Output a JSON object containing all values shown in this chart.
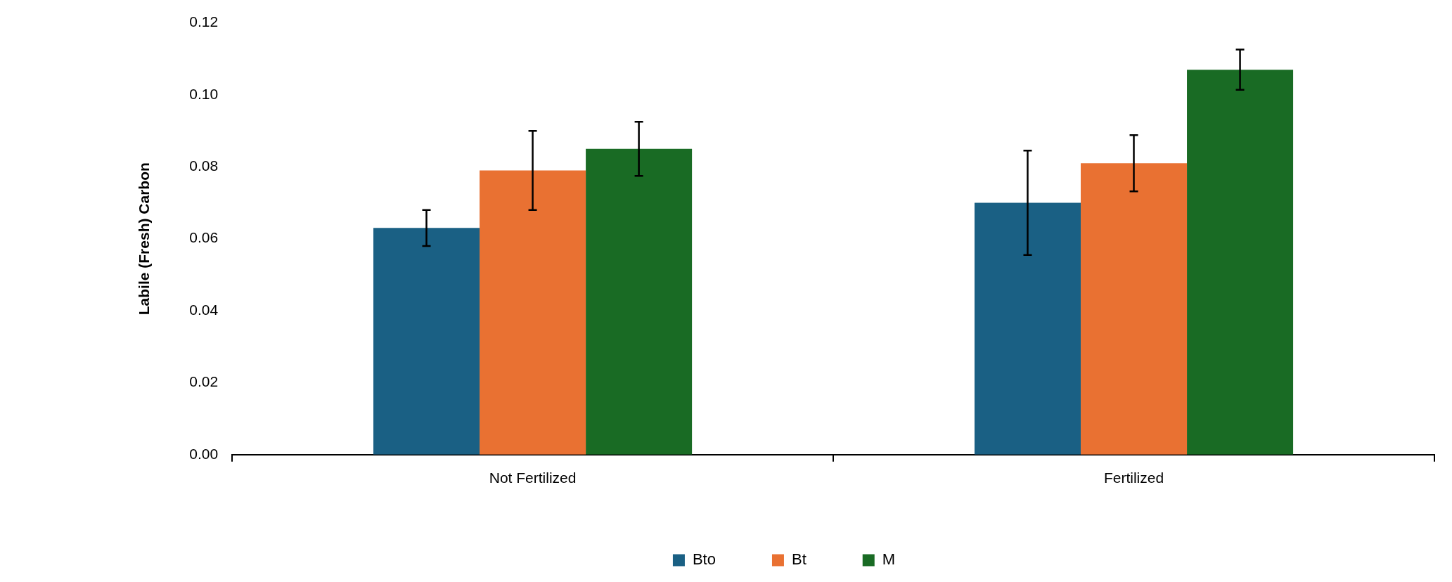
{
  "chart_data": {
    "type": "bar",
    "ylabel": "Labile (Fresh) Carbon",
    "categories": [
      "Not Fertilized",
      "Fertilized"
    ],
    "series": [
      {
        "name": "Bto",
        "color": "#1a6084",
        "values": [
          0.063,
          0.07
        ],
        "errors": [
          0.005,
          0.0145
        ]
      },
      {
        "name": "Bt",
        "color": "#e97132",
        "values": [
          0.079,
          0.081
        ],
        "errors": [
          0.011,
          0.0078
        ]
      },
      {
        "name": "M",
        "color": "#196b24",
        "values": [
          0.085,
          0.107
        ],
        "errors": [
          0.0075,
          0.0056
        ]
      }
    ],
    "ylim": [
      0,
      0.12
    ],
    "yticks": [
      {
        "value": 0,
        "label": "0.00"
      },
      {
        "value": 0.02,
        "label": "0.02"
      },
      {
        "value": 0.04,
        "label": "0.04"
      },
      {
        "value": 0.06,
        "label": "0.06"
      },
      {
        "value": 0.08,
        "label": "0.08"
      },
      {
        "value": 0.1,
        "label": "0.10"
      },
      {
        "value": 0.12,
        "label": "0.12"
      }
    ],
    "grid": false,
    "legend": "bottom"
  }
}
